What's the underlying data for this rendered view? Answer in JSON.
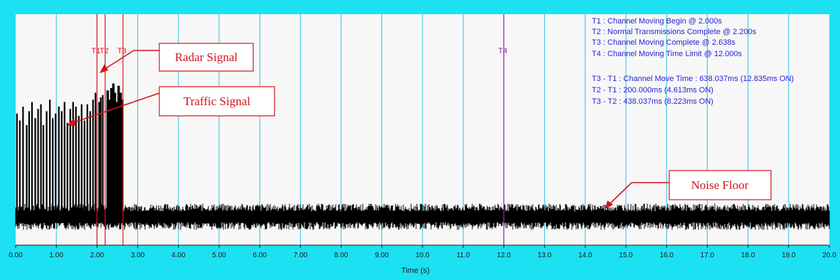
{
  "colors": {
    "frame": "#1ce1f2",
    "plot_background": "#f7f7f7",
    "grid": "#2bc3e6",
    "signal": "#000000",
    "marker_red": "#e0141c",
    "marker_purple": "#8a2bb0",
    "info_text": "#2424d8",
    "callout": "#d4141c"
  },
  "chart_data": {
    "type": "line",
    "xlabel": "Time (s)",
    "ylabel": "",
    "xlim": [
      0,
      20
    ],
    "ylim": [
      0,
      1
    ],
    "grid": true,
    "x_ticks": [
      "0.00",
      "1.00",
      "2.00",
      "3.00",
      "4.00",
      "5.00",
      "6.00",
      "7.00",
      "8.00",
      "9.00",
      "10.0",
      "11.0",
      "12.0",
      "13.0",
      "14.0",
      "15.0",
      "16.0",
      "17.0",
      "18.0",
      "19.0",
      "20.0"
    ],
    "markers": [
      {
        "label": "T1",
        "x": 2.0,
        "color": "#e0141c"
      },
      {
        "label": "T2",
        "x": 2.2,
        "color": "#e0141c"
      },
      {
        "label": "T3",
        "x": 2.638,
        "color": "#e0141c"
      },
      {
        "label": "T4",
        "x": 12.0,
        "color": "#8a2bb0"
      }
    ],
    "info_lines": [
      "T1 : Channel Moving Begin @ 2.000s",
      "T2 : Normal Transmissions Complete @ 2.200s",
      "T3 : Channel Moving Complete @ 2.638s",
      "T4 : Channel Moving Time Limit @ 12.000s",
      "T3 - T1 : Channel Move Time : 638.037ms (12.835ms ON)",
      "T2 - T1 : 200.000ms (4.613ms ON)",
      "T3 - T2 : 438.037ms (8.223ms ON)"
    ],
    "noise_floor": {
      "base": 0.12,
      "amplitude": 0.06
    },
    "traffic_pulses": [
      {
        "x": 0.03,
        "y": 0.57
      },
      {
        "x": 0.1,
        "y": 0.54
      },
      {
        "x": 0.18,
        "y": 0.6
      },
      {
        "x": 0.27,
        "y": 0.52
      },
      {
        "x": 0.33,
        "y": 0.58
      },
      {
        "x": 0.4,
        "y": 0.62
      },
      {
        "x": 0.48,
        "y": 0.55
      },
      {
        "x": 0.55,
        "y": 0.59
      },
      {
        "x": 0.62,
        "y": 0.61
      },
      {
        "x": 0.68,
        "y": 0.52
      },
      {
        "x": 0.76,
        "y": 0.58
      },
      {
        "x": 0.84,
        "y": 0.63
      },
      {
        "x": 0.91,
        "y": 0.55
      },
      {
        "x": 0.98,
        "y": 0.57
      },
      {
        "x": 1.06,
        "y": 0.6
      },
      {
        "x": 1.13,
        "y": 0.58
      },
      {
        "x": 1.2,
        "y": 0.62
      },
      {
        "x": 1.27,
        "y": 0.53
      },
      {
        "x": 1.34,
        "y": 0.59
      },
      {
        "x": 1.41,
        "y": 0.62
      },
      {
        "x": 1.48,
        "y": 0.6
      },
      {
        "x": 1.55,
        "y": 0.56
      },
      {
        "x": 1.62,
        "y": 0.61
      },
      {
        "x": 1.69,
        "y": 0.54
      },
      {
        "x": 1.76,
        "y": 0.61
      },
      {
        "x": 1.83,
        "y": 0.58
      },
      {
        "x": 1.9,
        "y": 0.63
      },
      {
        "x": 1.96,
        "y": 0.66
      },
      {
        "x": 2.05,
        "y": 0.62
      },
      {
        "x": 2.09,
        "y": 0.64
      },
      {
        "x": 2.14,
        "y": 0.65
      }
    ],
    "radar_pulses": [
      {
        "x": 2.26,
        "y": 0.67
      },
      {
        "x": 2.31,
        "y": 0.63
      },
      {
        "x": 2.35,
        "y": 0.68
      },
      {
        "x": 2.4,
        "y": 0.7
      },
      {
        "x": 2.44,
        "y": 0.66
      },
      {
        "x": 2.49,
        "y": 0.62
      },
      {
        "x": 2.53,
        "y": 0.69
      },
      {
        "x": 2.58,
        "y": 0.66
      },
      {
        "x": 2.62,
        "y": 0.63
      }
    ]
  },
  "callouts": [
    {
      "text": "Radar Signal"
    },
    {
      "text": "Traffic Signal"
    },
    {
      "text": "Noise Floor"
    }
  ]
}
